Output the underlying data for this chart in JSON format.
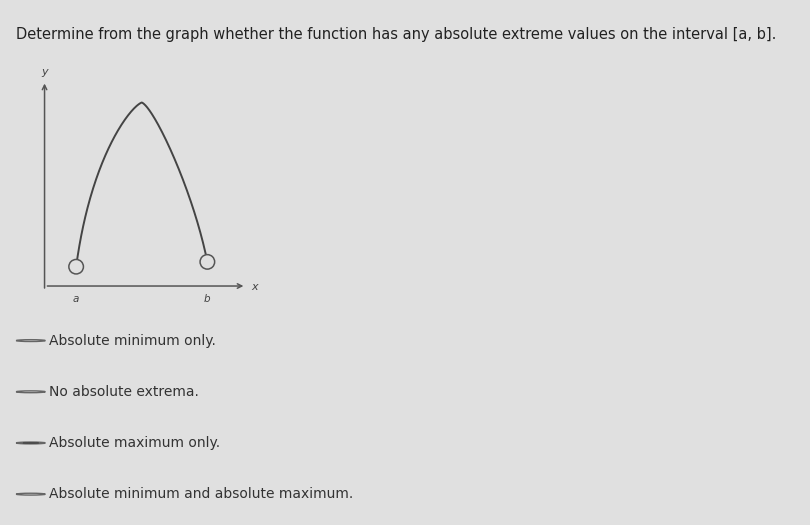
{
  "title": "Determine from the graph whether the function has any absolute extreme values on the interval [a, b].",
  "title_fontsize": 10.5,
  "background_color": "#e0e0e0",
  "options": [
    "Absolute minimum only.",
    "No absolute extrema.",
    "Absolute maximum only.",
    "Absolute minimum and absolute maximum."
  ],
  "selected_option": 2,
  "graph_curve_color": "#444444",
  "open_circle_facecolor": "#e0e0e0",
  "open_circle_edgecolor": "#555555",
  "axis_color": "#555555",
  "label_color": "#444444",
  "divider_color": "#aaaaaa",
  "radio_edge_color": "#666666",
  "radio_fill_color": "#444444",
  "option_text_color": "#333333",
  "option_text_fontsize": 10
}
